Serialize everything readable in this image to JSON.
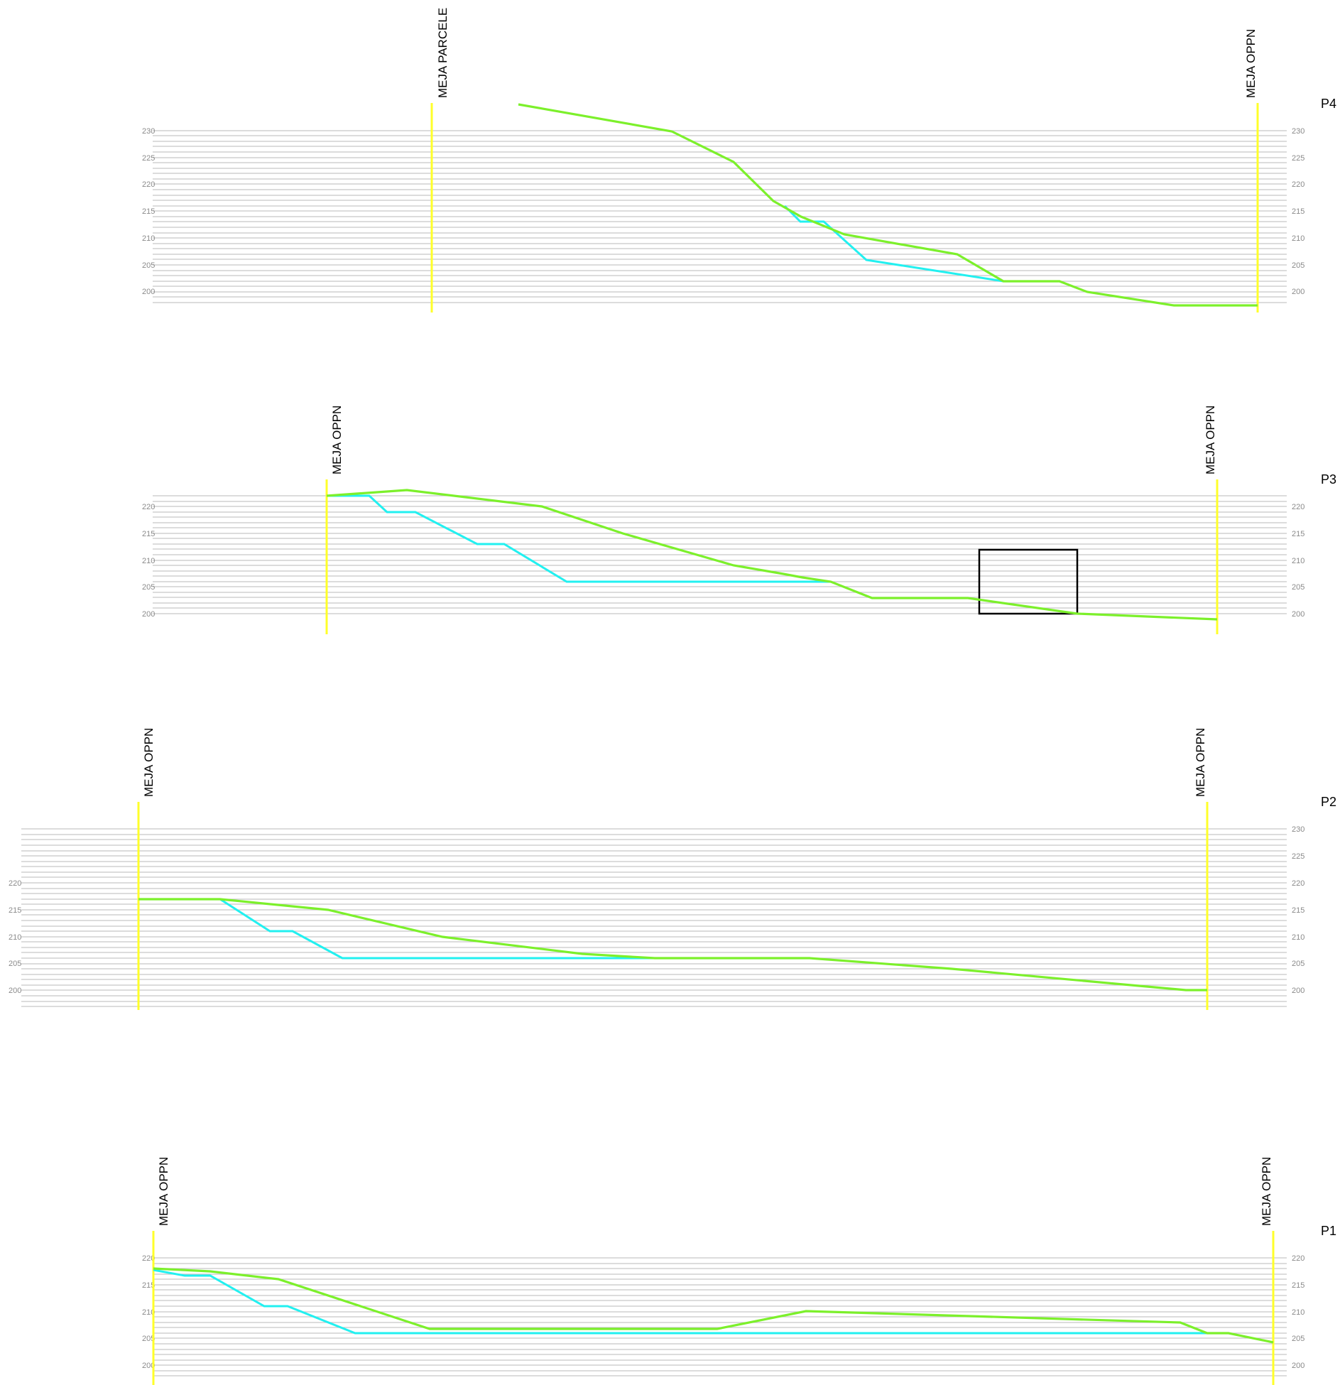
{
  "colors": {
    "terrain": "#7cf02b",
    "design": "#22f0f0",
    "boundary": "#ffff2a",
    "grid": "#c8c8c8",
    "tick_text": "#8a8a8a",
    "text": "#000000"
  },
  "sections": [
    {
      "name": "P4",
      "grid_ticks": [
        "230",
        "225",
        "220",
        "215",
        "210",
        "205",
        "200"
      ],
      "boundaries": [
        {
          "label": "MEJA PARCELE"
        },
        {
          "label": "MEJA OPPN"
        }
      ]
    },
    {
      "name": "P3",
      "grid_ticks": [
        "220",
        "215",
        "210",
        "205",
        "200"
      ],
      "boundaries": [
        {
          "label": "MEJA OPPN"
        },
        {
          "label": "MEJA OPPN"
        }
      ]
    },
    {
      "name": "P2",
      "grid_ticks": [
        "230",
        "225",
        "220",
        "215",
        "210",
        "205",
        "200"
      ],
      "boundaries": [
        {
          "label": "MEJA OPPN"
        },
        {
          "label": "MEJA OPPN"
        }
      ]
    },
    {
      "name": "P1",
      "grid_ticks": [
        "220",
        "215",
        "210",
        "205",
        "200"
      ],
      "boundaries": [
        {
          "label": "MEJA OPPN"
        },
        {
          "label": "MEJA OPPN"
        }
      ]
    }
  ]
}
